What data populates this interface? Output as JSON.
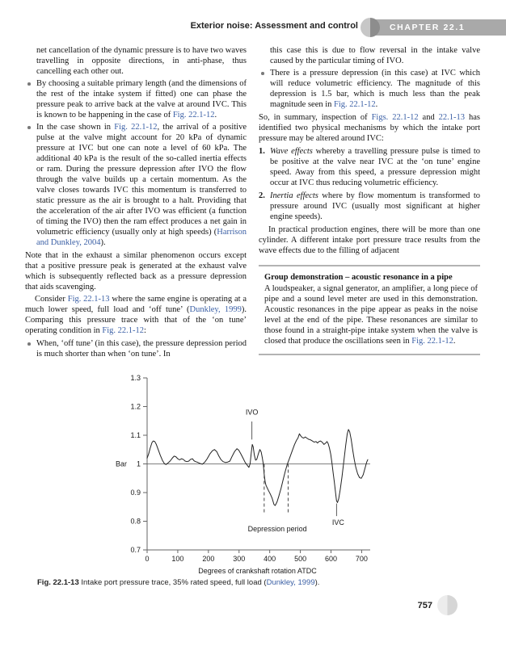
{
  "header": {
    "title": "Exterior noise: Assessment and control",
    "chapter": "CHAPTER 22.1"
  },
  "colors": {
    "link_blue": "#3a5fa5",
    "header_bar_gray": "#a9a9a9",
    "header_circle_left": "#c7c7c7",
    "header_circle_right": "#8d8d8d"
  },
  "columns": {
    "left": {
      "blocks": [
        {
          "type": "continuation",
          "segments": [
            {
              "text": "net cancellation of the dynamic pressure is to have two waves travelling in opposite directions, in anti-phase, thus cancelling each other out.",
              "style": "normal"
            }
          ]
        },
        {
          "type": "bullet",
          "segments": [
            {
              "text": "By choosing a suitable primary length (and the dimensions of the rest of the intake system if fitted) one can phase the pressure peak to arrive back at the valve at around IVC. This is known to be happening in the case of ",
              "style": "normal"
            },
            {
              "text": "Fig. 22.1-12",
              "style": "link"
            },
            {
              "text": ".",
              "style": "normal"
            }
          ]
        },
        {
          "type": "bullet",
          "segments": [
            {
              "text": "In the case shown in ",
              "style": "normal"
            },
            {
              "text": "Fig. 22.1-12",
              "style": "link"
            },
            {
              "text": ", the arrival of a positive pulse at the valve might account for 20 kPa of dynamic pressure at IVC but one can note a level of 60 kPa. The additional 40 kPa is the result of the so-called inertia effects or ram. During the pressure depression after IVO the flow through the valve builds up a certain momentum. As the valve closes towards IVC this momentum is transferred to static pressure as the air is brought to a halt. Providing that the acceleration of the air after IVO was efficient (a function of timing the IVO) then the ram effect produces a net gain in volumetric efficiency (usually only at high speeds) (",
              "style": "normal"
            },
            {
              "text": "Harrison and Dunkley, 2004",
              "style": "link"
            },
            {
              "text": ").",
              "style": "normal"
            }
          ]
        },
        {
          "type": "para",
          "space_before": true,
          "segments": [
            {
              "text": "Note that in the exhaust a similar phenomenon occurs except that a positive pressure peak is generated at the exhaust valve which is subsequently reflected back as a pressure depression that aids scavenging.",
              "style": "normal"
            }
          ]
        },
        {
          "type": "para",
          "indent": true,
          "segments": [
            {
              "text": "Consider ",
              "style": "normal"
            },
            {
              "text": "Fig. 22.1-13",
              "style": "link"
            },
            {
              "text": " where the same engine is operating at a much lower speed, full load and ‘off tune’ (",
              "style": "normal"
            },
            {
              "text": "Dunkley, 1999",
              "style": "link"
            },
            {
              "text": "). Comparing this pressure trace with that of the ‘on tune’ operating condition in ",
              "style": "normal"
            },
            {
              "text": "Fig. 22.1-12",
              "style": "link"
            },
            {
              "text": ":",
              "style": "normal"
            }
          ]
        },
        {
          "type": "bullet",
          "space_before": true,
          "segments": [
            {
              "text": "When, ‘off tune’ (in this case), the pressure depression period is much shorter than when ‘on tune’. In",
              "style": "normal"
            }
          ]
        }
      ]
    },
    "right": {
      "blocks": [
        {
          "type": "continuation",
          "segments": [
            {
              "text": "this case this is due to flow reversal in the intake valve caused by the particular timing of IVO.",
              "style": "normal"
            }
          ]
        },
        {
          "type": "bullet",
          "segments": [
            {
              "text": "There is a pressure depression (in this case) at IVC which will reduce volumetric efficiency. The magnitude of this depression is 1.5 bar, which is much less than the peak magnitude seen in ",
              "style": "normal"
            },
            {
              "text": "Fig. 22.1-12",
              "style": "link"
            },
            {
              "text": ".",
              "style": "normal"
            }
          ]
        },
        {
          "type": "para",
          "space_before": true,
          "segments": [
            {
              "text": "So, in summary, inspection of ",
              "style": "normal"
            },
            {
              "text": "Figs. 22.1-12",
              "style": "link"
            },
            {
              "text": " and ",
              "style": "normal"
            },
            {
              "text": "22.1-13",
              "style": "link"
            },
            {
              "text": " has identified two physical mechanisms by which the intake port pressure may be altered around IVC:",
              "style": "normal"
            }
          ]
        },
        {
          "type": "numbered",
          "number": "1.",
          "space_before": true,
          "segments": [
            {
              "text": "Wave effects",
              "style": "italic"
            },
            {
              "text": " whereby a travelling pressure pulse is timed to be positive at the valve near IVC at the ‘on tune’ engine speed. Away from this speed, a pressure depression might occur at IVC thus reducing volumetric efficiency.",
              "style": "normal"
            }
          ]
        },
        {
          "type": "numbered",
          "number": "2.",
          "space_before": true,
          "segments": [
            {
              "text": "Inertia effects",
              "style": "italic"
            },
            {
              "text": " where by flow momentum is transformed to pressure around IVC (usually most significant at higher engine speeds).",
              "style": "normal"
            }
          ]
        },
        {
          "type": "para",
          "indent": true,
          "space_before": true,
          "segments": [
            {
              "text": "In practical production engines, there will be more than one cylinder. A different intake port pressure trace results from the wave effects due to the filling of adjacent",
              "style": "normal"
            }
          ]
        },
        {
          "type": "box",
          "title": "Group demonstration – acoustic resonance in a pipe",
          "segments": [
            {
              "text": "A loudspeaker, a signal generator, an amplifier, a long piece of pipe and a sound level meter are used in this demonstration. Acoustic resonances in the pipe appear as peaks in the noise level at the end of the pipe. These resonances are similar to those found in a straight-pipe intake system when the valve is closed that produce the oscillations seen in ",
              "style": "normal"
            },
            {
              "text": "Fig. 22.1-12",
              "style": "link"
            },
            {
              "text": ".",
              "style": "normal"
            }
          ]
        }
      ]
    }
  },
  "chart_data": {
    "type": "line",
    "title": "",
    "xlabel": "Degrees of crankshaft rotation ATDC",
    "ylabel": "Bar",
    "xlim": [
      0,
      720
    ],
    "ylim": [
      0.7,
      1.3
    ],
    "xticks": [
      0,
      100,
      200,
      300,
      400,
      500,
      600,
      700
    ],
    "yticks": [
      "1.3",
      "1.2",
      "1.1",
      "1",
      "0.9",
      "0.8",
      "0.7"
    ],
    "grid": false,
    "reference_line_y": 1.0,
    "series": [
      {
        "name": "intake port pressure (bar)",
        "points": [
          [
            0,
            1.02
          ],
          [
            5,
            1.035
          ],
          [
            10,
            1.055
          ],
          [
            16,
            1.075
          ],
          [
            20,
            1.08
          ],
          [
            25,
            1.078
          ],
          [
            30,
            1.068
          ],
          [
            36,
            1.05
          ],
          [
            43,
            1.03
          ],
          [
            50,
            1.012
          ],
          [
            57,
            1.0
          ],
          [
            62,
            0.998
          ],
          [
            68,
            1.003
          ],
          [
            75,
            1.01
          ],
          [
            82,
            1.02
          ],
          [
            88,
            1.027
          ],
          [
            94,
            1.025
          ],
          [
            100,
            1.018
          ],
          [
            106,
            1.014
          ],
          [
            112,
            1.018
          ],
          [
            118,
            1.016
          ],
          [
            124,
            1.01
          ],
          [
            130,
            1.008
          ],
          [
            136,
            1.01
          ],
          [
            142,
            1.016
          ],
          [
            148,
            1.018
          ],
          [
            153,
            1.011
          ],
          [
            158,
            1.008
          ],
          [
            164,
            1.006
          ],
          [
            172,
            1.002
          ],
          [
            180,
            0.999
          ],
          [
            188,
            1.006
          ],
          [
            196,
            1.018
          ],
          [
            205,
            1.035
          ],
          [
            213,
            1.046
          ],
          [
            220,
            1.05
          ],
          [
            227,
            1.043
          ],
          [
            234,
            1.028
          ],
          [
            241,
            1.015
          ],
          [
            248,
            1.008
          ],
          [
            255,
            1.005
          ],
          [
            262,
            1.006
          ],
          [
            270,
            1.01
          ],
          [
            278,
            1.028
          ],
          [
            286,
            1.044
          ],
          [
            293,
            1.053
          ],
          [
            299,
            1.048
          ],
          [
            306,
            1.035
          ],
          [
            313,
            1.02
          ],
          [
            320,
            1.005
          ],
          [
            327,
            0.995
          ],
          [
            332,
            0.988
          ],
          [
            336,
            1.0
          ],
          [
            340,
            1.04
          ],
          [
            343,
            1.068
          ],
          [
            346,
            1.06
          ],
          [
            350,
            1.03
          ],
          [
            354,
            1.013
          ],
          [
            358,
            1.016
          ],
          [
            363,
            1.035
          ],
          [
            368,
            1.05
          ],
          [
            372,
            1.042
          ],
          [
            376,
            1.02
          ],
          [
            379,
            1.0
          ],
          [
            382,
            0.965
          ],
          [
            385,
            0.938
          ],
          [
            388,
            0.925
          ],
          [
            392,
            0.916
          ],
          [
            397,
            0.905
          ],
          [
            402,
            0.895
          ],
          [
            408,
            0.88
          ],
          [
            414,
            0.858
          ],
          [
            418,
            0.855
          ],
          [
            424,
            0.868
          ],
          [
            430,
            0.888
          ],
          [
            437,
            0.915
          ],
          [
            444,
            0.945
          ],
          [
            451,
            0.975
          ],
          [
            457,
            0.998
          ],
          [
            463,
            1.015
          ],
          [
            469,
            1.032
          ],
          [
            475,
            1.05
          ],
          [
            481,
            1.068
          ],
          [
            487,
            1.082
          ],
          [
            492,
            1.09
          ],
          [
            497,
            1.105
          ],
          [
            501,
            1.098
          ],
          [
            506,
            1.092
          ],
          [
            511,
            1.09
          ],
          [
            516,
            1.094
          ],
          [
            521,
            1.09
          ],
          [
            527,
            1.086
          ],
          [
            533,
            1.084
          ],
          [
            539,
            1.08
          ],
          [
            545,
            1.076
          ],
          [
            551,
            1.078
          ],
          [
            556,
            1.073
          ],
          [
            561,
            1.078
          ],
          [
            566,
            1.08
          ],
          [
            572,
            1.075
          ],
          [
            577,
            1.068
          ],
          [
            582,
            1.072
          ],
          [
            587,
            1.078
          ],
          [
            591,
            1.07
          ],
          [
            595,
            1.055
          ],
          [
            599,
            1.035
          ],
          [
            603,
            1.005
          ],
          [
            607,
            0.968
          ],
          [
            611,
            0.935
          ],
          [
            615,
            0.898
          ],
          [
            618,
            0.872
          ],
          [
            621,
            0.865
          ],
          [
            625,
            0.878
          ],
          [
            630,
            0.91
          ],
          [
            636,
            0.955
          ],
          [
            642,
            1.01
          ],
          [
            648,
            1.065
          ],
          [
            653,
            1.105
          ],
          [
            657,
            1.12
          ],
          [
            661,
            1.112
          ],
          [
            666,
            1.085
          ],
          [
            671,
            1.048
          ],
          [
            676,
            1.015
          ],
          [
            681,
            0.988
          ],
          [
            687,
            0.965
          ],
          [
            693,
            0.952
          ],
          [
            699,
            0.95
          ],
          [
            705,
            0.962
          ],
          [
            711,
            0.985
          ],
          [
            716,
            1.005
          ],
          [
            720,
            1.015
          ]
        ]
      }
    ],
    "annotations": {
      "ivo": {
        "label": "IVO",
        "x": 342,
        "line_y1": 1.148,
        "line_y2": 1.085,
        "label_y": 1.172
      },
      "ivc": {
        "label": "IVC",
        "x": 618,
        "line_y1": 0.862,
        "line_y2": 0.818,
        "label_y": 0.788
      },
      "depression": {
        "label": "Depression period",
        "x1": 382,
        "x2": 460,
        "y_top": 1.0,
        "y_bottom": 0.825,
        "label_x": 425,
        "label_y": 0.765
      }
    },
    "legend": null
  },
  "figure_caption": {
    "segments": [
      {
        "text": "Fig. 22.1-13",
        "style": "bold"
      },
      {
        "text": " Intake port pressure trace, 35% rated speed, full load (",
        "style": "normal"
      },
      {
        "text": "Dunkley, 1999",
        "style": "link"
      },
      {
        "text": ").",
        "style": "normal"
      }
    ]
  },
  "footer": {
    "page_number": "757"
  }
}
